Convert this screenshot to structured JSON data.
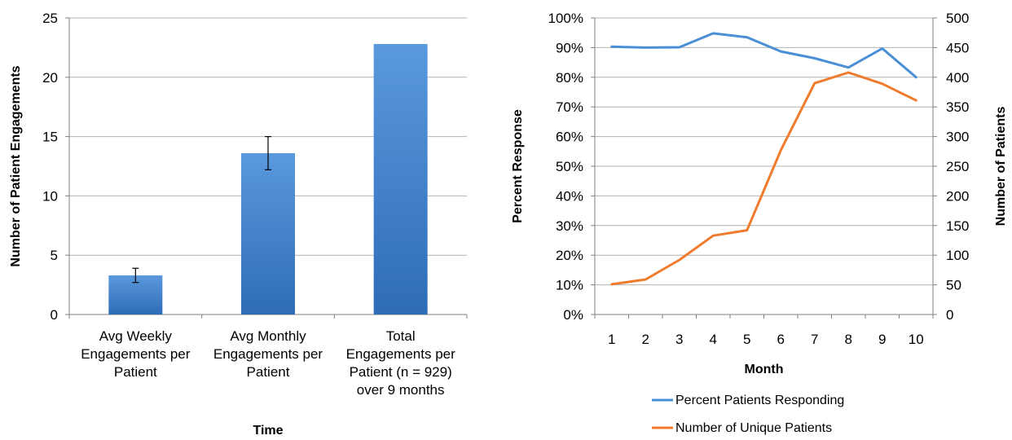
{
  "chart_data": [
    {
      "type": "bar",
      "categories": [
        [
          "Avg Weekly",
          "Engagements per",
          "Patient"
        ],
        [
          "Avg Monthly",
          "Engagements per",
          "Patient"
        ],
        [
          "Total",
          "Engagements per",
          "Patient (n = 929)",
          "over 9 months"
        ]
      ],
      "values": [
        3.3,
        13.6,
        22.8
      ],
      "error_bars": [
        [
          2.7,
          3.9
        ],
        [
          12.2,
          15.0
        ],
        null
      ],
      "xlabel": "Time",
      "ylabel": "Number of Patient Engagements",
      "ylim": [
        0,
        25
      ],
      "yticks": [
        "0",
        "5",
        "10",
        "15",
        "20",
        "25"
      ],
      "grid": true,
      "bar_color": "#3e7fd0"
    },
    {
      "type": "line",
      "x": [
        1,
        2,
        3,
        4,
        5,
        6,
        7,
        8,
        9,
        10
      ],
      "xlabel": "Month",
      "ylabel": "Percent Response",
      "y2label": "Number of Patients",
      "ylim": [
        0,
        100
      ],
      "y2lim": [
        0,
        500
      ],
      "yticks": [
        "0%",
        "10%",
        "20%",
        "30%",
        "40%",
        "50%",
        "60%",
        "70%",
        "80%",
        "90%",
        "100%"
      ],
      "y2ticks": [
        "0",
        "50",
        "100",
        "150",
        "200",
        "250",
        "300",
        "350",
        "400",
        "450",
        "500"
      ],
      "grid": true,
      "legend_position": "bottom",
      "series": [
        {
          "name": "Percent Patients Responding",
          "axis": "left",
          "color": "#4a8fd6",
          "values": [
            90.3,
            90.0,
            90.1,
            94.8,
            93.5,
            88.7,
            86.4,
            83.3,
            89.7,
            80.0
          ]
        },
        {
          "name": "Number of Unique Patients",
          "axis": "right",
          "color": "#f07b2c",
          "values": [
            51,
            59,
            92,
            133,
            142,
            277,
            390,
            408,
            389,
            361
          ]
        }
      ]
    }
  ]
}
